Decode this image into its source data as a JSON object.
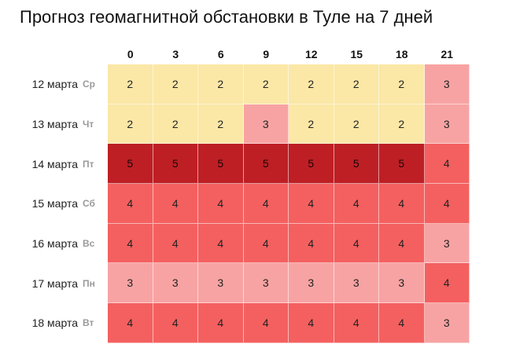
{
  "title": "Прогноз геомагнитной обстановки в Туле на 7 дней",
  "hours": [
    "0",
    "3",
    "6",
    "9",
    "12",
    "15",
    "18",
    "21"
  ],
  "level_colors": {
    "2": "#fbe7a6",
    "3": "#f8a3a3",
    "4": "#f46060",
    "5": "#bd1f25"
  },
  "days": [
    {
      "date": "12 марта",
      "dow": "Ср",
      "values": [
        "2",
        "2",
        "2",
        "2",
        "2",
        "2",
        "2",
        "3"
      ]
    },
    {
      "date": "13 марта",
      "dow": "Чт",
      "values": [
        "2",
        "2",
        "2",
        "3",
        "2",
        "2",
        "2",
        "3"
      ]
    },
    {
      "date": "14 марта",
      "dow": "Пт",
      "values": [
        "5",
        "5",
        "5",
        "5",
        "5",
        "5",
        "5",
        "4"
      ]
    },
    {
      "date": "15 марта",
      "dow": "Сб",
      "values": [
        "4",
        "4",
        "4",
        "4",
        "4",
        "4",
        "4",
        "4"
      ]
    },
    {
      "date": "16 марта",
      "dow": "Вс",
      "values": [
        "4",
        "4",
        "4",
        "4",
        "4",
        "4",
        "4",
        "3"
      ]
    },
    {
      "date": "17 марта",
      "dow": "Пн",
      "values": [
        "3",
        "3",
        "3",
        "3",
        "3",
        "3",
        "3",
        "4"
      ]
    },
    {
      "date": "18 марта",
      "dow": "Вт",
      "values": [
        "4",
        "4",
        "4",
        "4",
        "4",
        "4",
        "4",
        "3"
      ]
    }
  ]
}
